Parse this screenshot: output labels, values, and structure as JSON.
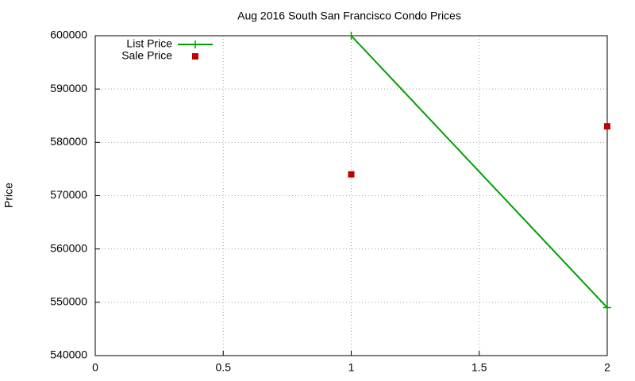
{
  "chart_data": {
    "type": "line",
    "title": "Aug 2016 South San Francisco Condo Prices",
    "y_label": "Price",
    "xlim": [
      0,
      2
    ],
    "xticks": [
      0,
      0.5,
      1,
      1.5,
      2
    ],
    "ylim": [
      540000,
      600000
    ],
    "yticks": [
      540000,
      550000,
      560000,
      570000,
      580000,
      590000,
      600000
    ],
    "grid": true,
    "legend": "top-left",
    "series": [
      {
        "name": "List Price",
        "color": "#00a000",
        "mode": "lines+markers",
        "marker": "plus",
        "x": [
          1,
          2
        ],
        "values": [
          600000,
          549000
        ]
      },
      {
        "name": "Sale Price",
        "color": "#c00000",
        "mode": "markers",
        "marker": "square",
        "x": [
          1,
          2
        ],
        "values": [
          574000,
          583000
        ]
      }
    ]
  }
}
